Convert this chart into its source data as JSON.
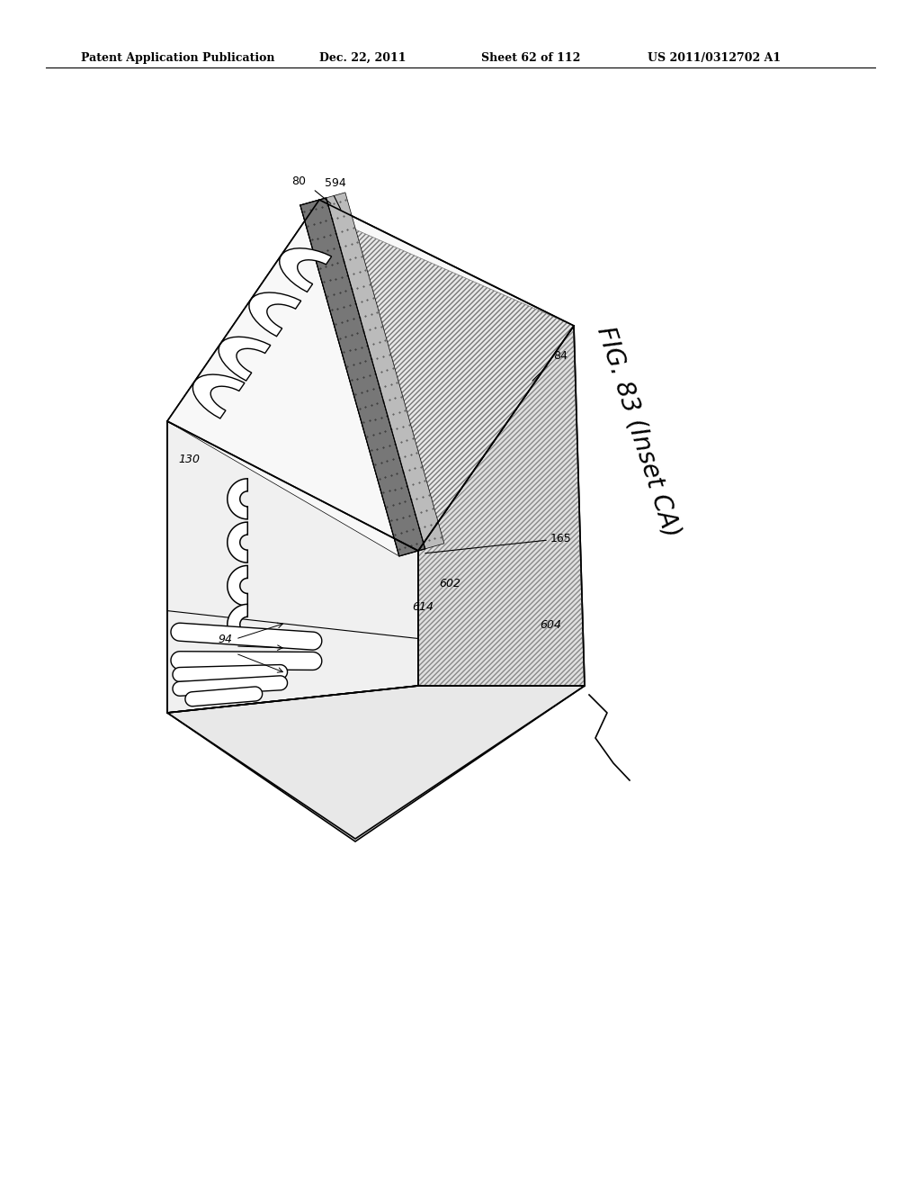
{
  "background_color": "#ffffff",
  "header_text": "Patent Application Publication",
  "header_date": "Dec. 22, 2011",
  "header_sheet": "Sheet 62 of 112",
  "header_patent": "US 2011/0312702 A1",
  "fig_label": "FIG. 83 (Inset CA)",
  "line_width": 1.2
}
